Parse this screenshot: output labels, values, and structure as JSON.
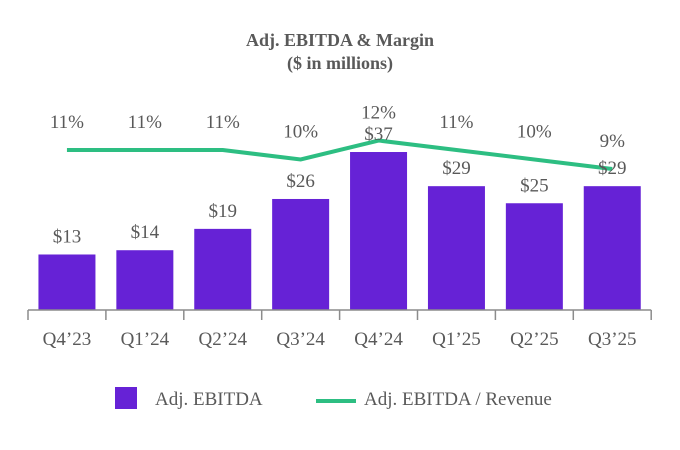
{
  "chart_data": {
    "type": "bar",
    "title": "Adj. EBITDA & Margin",
    "subtitle": "($ in millions)",
    "categories": [
      "Q4’23",
      "Q1’24",
      "Q2’24",
      "Q3’24",
      "Q4’24",
      "Q1’25",
      "Q2’25",
      "Q3’25"
    ],
    "series": [
      {
        "name": "Adj. EBITDA",
        "type": "bar",
        "values": [
          13,
          14,
          19,
          26,
          37,
          29,
          25,
          29
        ],
        "labels": [
          "$13",
          "$14",
          "$19",
          "$26",
          "$37",
          "$29",
          "$25",
          "$29"
        ],
        "color": "#6622D6"
      },
      {
        "name": "Adj. EBITDA / Revenue",
        "type": "line",
        "unit": "%",
        "values": [
          11,
          11,
          11,
          10,
          12,
          11,
          10,
          9
        ],
        "labels": [
          "11%",
          "11%",
          "11%",
          "10%",
          "12%",
          "11%",
          "10%",
          "9%"
        ],
        "color": "#2DBE82"
      }
    ],
    "ylim": [
      0,
      40
    ],
    "grid": false,
    "legend_position": "bottom"
  }
}
